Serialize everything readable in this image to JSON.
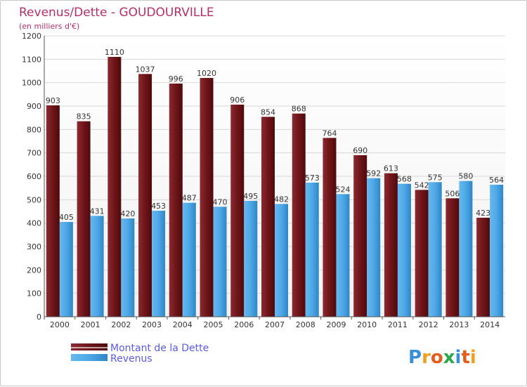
{
  "chart_data": {
    "type": "bar",
    "title": "Revenus/Dette - GOUDOURVILLE",
    "subtitle": "(en milliers d'€)",
    "xlabel": "",
    "ylabel": "",
    "ylim": [
      0,
      1200
    ],
    "yticks": [
      0,
      100,
      200,
      300,
      400,
      500,
      600,
      700,
      800,
      900,
      1000,
      1100,
      1200
    ],
    "grid": true,
    "categories": [
      "2000",
      "2001",
      "2002",
      "2003",
      "2004",
      "2005",
      "2006",
      "2007",
      "2008",
      "2009",
      "2010",
      "2011",
      "2012",
      "2013",
      "2014"
    ],
    "series": [
      {
        "name": "Montant de la Dette",
        "color": "#7a1f24",
        "values": [
          903,
          835,
          1110,
          1037,
          996,
          1020,
          906,
          854,
          868,
          764,
          690,
          613,
          542,
          506,
          423
        ]
      },
      {
        "name": "Revenus",
        "color": "#4ea8e6",
        "values": [
          405,
          431,
          420,
          453,
          487,
          470,
          495,
          482,
          573,
          524,
          592,
          568,
          575,
          580,
          564
        ]
      }
    ],
    "legend_position": "bottom-left"
  },
  "logo": {
    "text": "Proxiti",
    "letters": [
      {
        "ch": "P",
        "color": "#3a8fd6"
      },
      {
        "ch": "r",
        "color": "#f0a020"
      },
      {
        "ch": "o",
        "color": "#e25c1e"
      },
      {
        "ch": "x",
        "color": "#2aa84a"
      },
      {
        "ch": "i",
        "color": "#3a8fd6"
      },
      {
        "ch": "t",
        "color": "#e25c1e"
      },
      {
        "ch": "i",
        "color": "#f0a020"
      }
    ]
  }
}
